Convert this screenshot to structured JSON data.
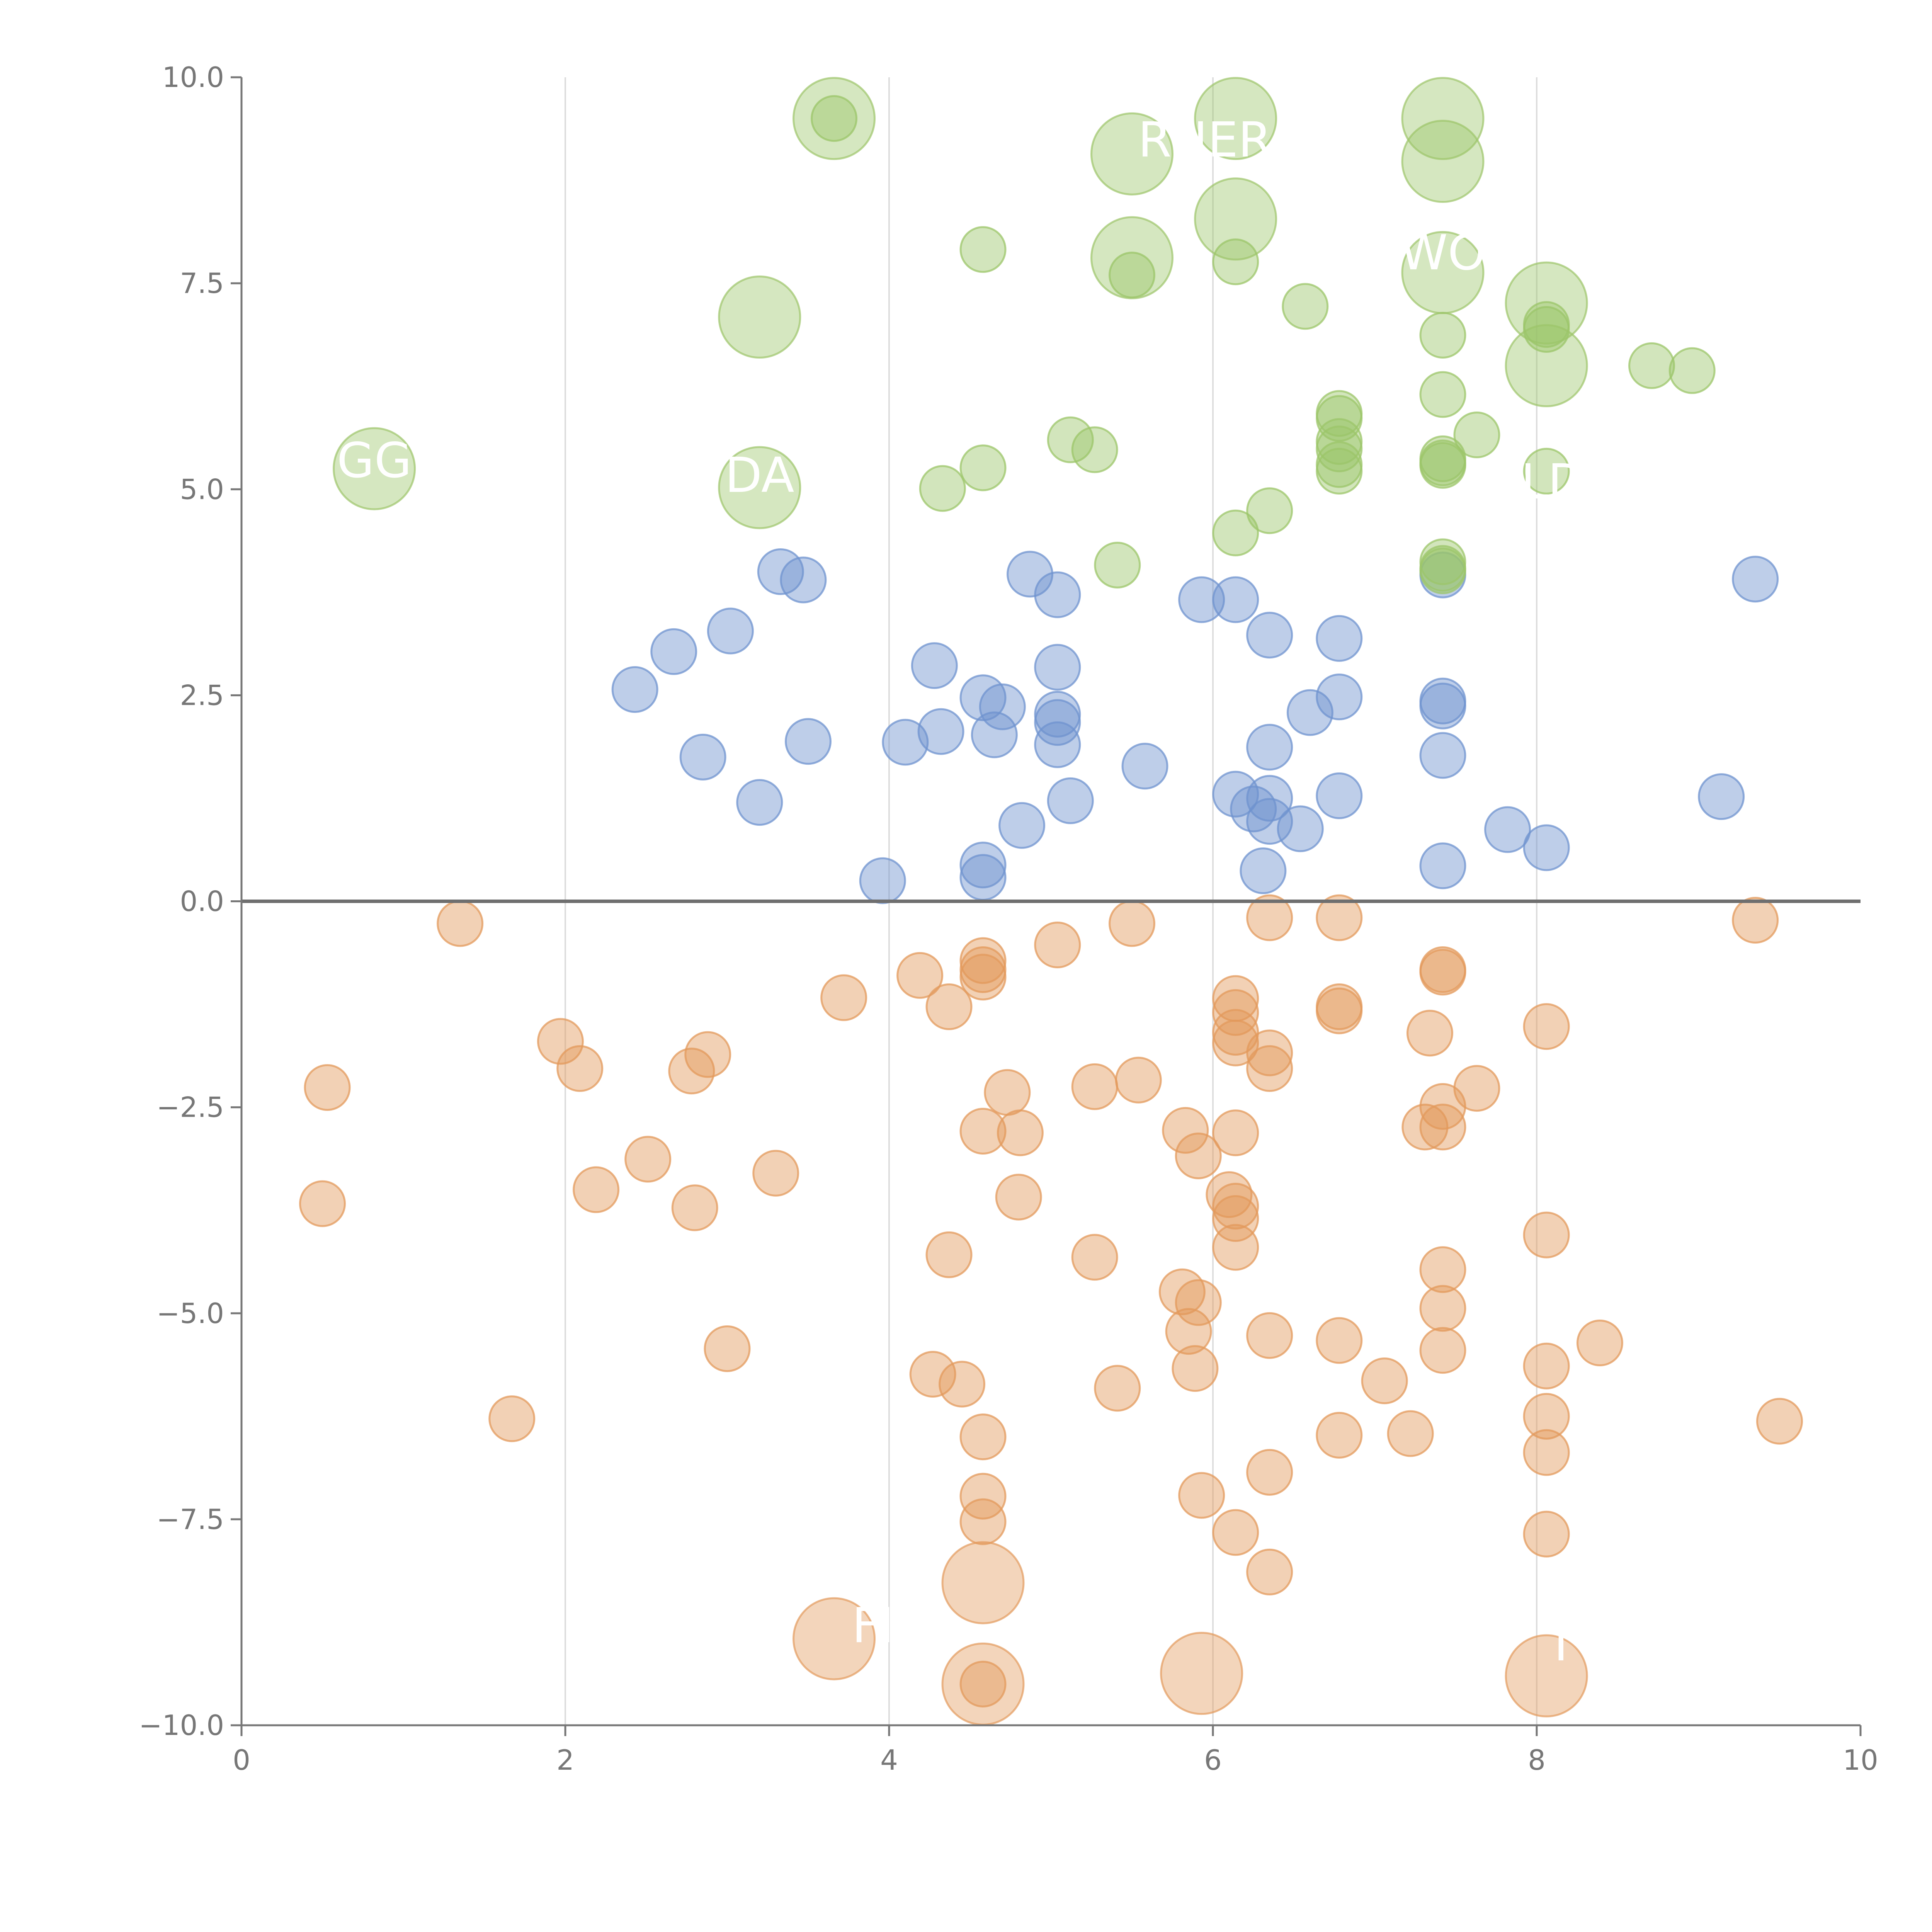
{
  "colors": {
    "positive": "#6f93cf",
    "negative": "#e39a5c",
    "top": "#9cc56a",
    "axis": "#777777",
    "grid": "#dddddd",
    "zero_line": "#6f6f6f",
    "label": "#ffffff"
  },
  "chart_data": {
    "type": "scatter",
    "title": "",
    "xlabel": "",
    "ylabel": "",
    "xlim": [
      0,
      10
    ],
    "ylim": [
      -10,
      10
    ],
    "xticks": [
      "0",
      "2",
      "4",
      "6",
      "8",
      "10"
    ],
    "xtick_values": [
      0,
      2,
      4,
      6,
      8,
      10
    ],
    "yticks": [
      "10.0",
      "7.5",
      "5.0",
      "2.5",
      "0.0",
      "−2.5",
      "−5.0",
      "−7.5",
      "−10.0"
    ],
    "ytick_values": [
      10,
      7.5,
      5,
      2.5,
      0,
      -2.5,
      -5,
      -7.5,
      -10
    ],
    "vgrid": [
      2,
      4,
      6,
      8
    ],
    "hline": 0,
    "series": [
      {
        "name": "positive",
        "color_key": "positive",
        "points": [
          [
            2.43,
            2.57
          ],
          [
            2.67,
            3.03
          ],
          [
            2.85,
            1.75
          ],
          [
            3.02,
            3.28
          ],
          [
            3.2,
            1.2
          ],
          [
            3.33,
            4.0
          ],
          [
            3.47,
            3.9
          ],
          [
            3.5,
            1.94
          ],
          [
            3.96,
            0.25
          ],
          [
            4.1,
            1.93
          ],
          [
            4.28,
            2.86
          ],
          [
            4.32,
            2.06
          ],
          [
            4.58,
            0.44
          ],
          [
            4.58,
            0.29
          ],
          [
            4.58,
            2.47
          ],
          [
            4.65,
            2.02
          ],
          [
            4.7,
            2.36
          ],
          [
            4.82,
            0.92
          ],
          [
            4.87,
            3.97
          ],
          [
            5.04,
            3.72
          ],
          [
            5.04,
            2.84
          ],
          [
            5.04,
            2.27
          ],
          [
            5.04,
            2.17
          ],
          [
            5.04,
            1.9
          ],
          [
            5.12,
            1.22
          ],
          [
            5.58,
            1.64
          ],
          [
            5.93,
            3.66
          ],
          [
            6.14,
            3.66
          ],
          [
            6.14,
            1.3
          ],
          [
            6.25,
            1.12
          ],
          [
            6.31,
            0.37
          ],
          [
            6.35,
            3.23
          ],
          [
            6.35,
            1.87
          ],
          [
            6.35,
            1.25
          ],
          [
            6.35,
            0.97
          ],
          [
            6.54,
            0.88
          ],
          [
            6.6,
            2.29
          ],
          [
            6.78,
            3.19
          ],
          [
            6.78,
            2.48
          ],
          [
            6.78,
            1.28
          ],
          [
            7.42,
            3.96
          ],
          [
            7.42,
            2.43
          ],
          [
            7.42,
            2.37
          ],
          [
            7.42,
            1.77
          ],
          [
            7.42,
            0.43
          ],
          [
            7.82,
            0.87
          ],
          [
            8.06,
            0.65
          ],
          [
            9.14,
            1.27
          ],
          [
            9.35,
            3.91
          ]
        ]
      },
      {
        "name": "negative",
        "color_key": "negative",
        "points": [
          [
            0.5,
            -3.67
          ],
          [
            0.53,
            -2.26
          ],
          [
            1.35,
            -0.27
          ],
          [
            1.67,
            -6.28
          ],
          [
            1.97,
            -1.7
          ],
          [
            2.09,
            -2.03
          ],
          [
            2.19,
            -3.5
          ],
          [
            2.51,
            -3.13
          ],
          [
            2.78,
            -2.06
          ],
          [
            2.8,
            -3.72
          ],
          [
            2.88,
            -1.86
          ],
          [
            3.0,
            -5.43
          ],
          [
            3.3,
            -3.3
          ],
          [
            3.72,
            -1.17
          ],
          [
            4.19,
            -0.9
          ],
          [
            4.27,
            -5.74
          ],
          [
            4.37,
            -1.28
          ],
          [
            4.37,
            -4.29
          ],
          [
            4.45,
            -5.86
          ],
          [
            4.58,
            -0.72
          ],
          [
            4.58,
            -0.83
          ],
          [
            4.58,
            -0.92
          ],
          [
            4.58,
            -2.79
          ],
          [
            4.58,
            -6.5
          ],
          [
            4.58,
            -7.22
          ],
          [
            4.58,
            -7.53
          ],
          [
            4.58,
            -9.5
          ],
          [
            4.73,
            -2.32
          ],
          [
            4.8,
            -3.59
          ],
          [
            4.81,
            -2.81
          ],
          [
            5.04,
            -0.53
          ],
          [
            5.27,
            -2.25
          ],
          [
            5.27,
            -4.32
          ],
          [
            5.41,
            -5.91
          ],
          [
            5.5,
            -0.27
          ],
          [
            5.54,
            -2.17
          ],
          [
            5.81,
            -4.74
          ],
          [
            5.83,
            -2.78
          ],
          [
            5.85,
            -5.22
          ],
          [
            5.89,
            -5.67
          ],
          [
            5.91,
            -4.87
          ],
          [
            5.91,
            -3.09
          ],
          [
            5.93,
            -7.21
          ],
          [
            6.1,
            -3.56
          ],
          [
            6.14,
            -3.7
          ],
          [
            6.14,
            -3.85
          ],
          [
            6.14,
            -4.2
          ],
          [
            6.14,
            -1.18
          ],
          [
            6.14,
            -1.35
          ],
          [
            6.14,
            -1.59
          ],
          [
            6.14,
            -1.72
          ],
          [
            6.14,
            -2.81
          ],
          [
            6.14,
            -7.66
          ],
          [
            6.35,
            -0.2
          ],
          [
            6.35,
            -1.84
          ],
          [
            6.35,
            -2.03
          ],
          [
            6.35,
            -5.27
          ],
          [
            6.35,
            -6.93
          ],
          [
            6.35,
            -8.14
          ],
          [
            6.78,
            -0.2
          ],
          [
            6.78,
            -1.28
          ],
          [
            6.78,
            -1.33
          ],
          [
            6.78,
            -5.33
          ],
          [
            6.78,
            -6.48
          ],
          [
            7.06,
            -5.82
          ],
          [
            7.22,
            -6.46
          ],
          [
            7.31,
            -2.74
          ],
          [
            7.34,
            -1.6
          ],
          [
            7.42,
            -0.83
          ],
          [
            7.42,
            -0.86
          ],
          [
            7.42,
            -2.49
          ],
          [
            7.42,
            -2.74
          ],
          [
            7.42,
            -4.47
          ],
          [
            7.42,
            -4.94
          ],
          [
            7.42,
            -5.45
          ],
          [
            7.63,
            -2.27
          ],
          [
            8.06,
            -1.52
          ],
          [
            8.06,
            -4.05
          ],
          [
            8.06,
            -5.64
          ],
          [
            8.06,
            -6.25
          ],
          [
            8.06,
            -6.69
          ],
          [
            8.06,
            -7.68
          ],
          [
            8.39,
            -5.36
          ],
          [
            9.35,
            -0.23
          ],
          [
            9.5,
            -6.31
          ]
        ]
      },
      {
        "name": "top",
        "color_key": "top",
        "points": [
          [
            3.66,
            9.5
          ],
          [
            4.33,
            5.01
          ],
          [
            4.58,
            7.91
          ],
          [
            4.58,
            5.26
          ],
          [
            5.12,
            5.6
          ],
          [
            5.27,
            5.48
          ],
          [
            5.41,
            4.08
          ],
          [
            5.5,
            7.6
          ],
          [
            6.14,
            7.76
          ],
          [
            6.14,
            4.47
          ],
          [
            6.35,
            4.74
          ],
          [
            6.57,
            7.22
          ],
          [
            6.78,
            5.92
          ],
          [
            6.78,
            5.86
          ],
          [
            6.78,
            5.58
          ],
          [
            6.78,
            5.49
          ],
          [
            6.78,
            5.3
          ],
          [
            6.78,
            5.22
          ],
          [
            7.42,
            6.87
          ],
          [
            7.42,
            6.15
          ],
          [
            7.42,
            5.37
          ],
          [
            7.42,
            5.32
          ],
          [
            7.42,
            5.29
          ],
          [
            7.42,
            4.12
          ],
          [
            7.42,
            4.04
          ],
          [
            7.42,
            4.01
          ],
          [
            7.63,
            5.66
          ],
          [
            8.06,
            7.0
          ],
          [
            8.06,
            6.94
          ],
          [
            8.06,
            5.22
          ],
          [
            8.71,
            6.5
          ],
          [
            8.96,
            6.44
          ]
        ]
      }
    ],
    "large_bubbles": [
      {
        "x": 0.82,
        "y": 5.25,
        "series": "top"
      },
      {
        "x": 3.2,
        "y": 7.09,
        "series": "top"
      },
      {
        "x": 3.2,
        "y": 5.02,
        "series": "top"
      },
      {
        "x": 3.66,
        "y": 9.5,
        "series": "top"
      },
      {
        "x": 5.5,
        "y": 9.07,
        "series": "top"
      },
      {
        "x": 5.5,
        "y": 7.81,
        "series": "top"
      },
      {
        "x": 6.14,
        "y": 9.5,
        "series": "top"
      },
      {
        "x": 6.14,
        "y": 8.28,
        "series": "top"
      },
      {
        "x": 7.42,
        "y": 9.5,
        "series": "top"
      },
      {
        "x": 7.42,
        "y": 8.98,
        "series": "top"
      },
      {
        "x": 7.42,
        "y": 7.63,
        "series": "top"
      },
      {
        "x": 8.06,
        "y": 7.26,
        "series": "top"
      },
      {
        "x": 8.06,
        "y": 6.5,
        "series": "top"
      },
      {
        "x": 3.66,
        "y": -8.95,
        "series": "negative"
      },
      {
        "x": 4.58,
        "y": -8.27,
        "series": "negative"
      },
      {
        "x": 4.58,
        "y": -9.5,
        "series": "negative"
      },
      {
        "x": 5.93,
        "y": -9.37,
        "series": "negative"
      },
      {
        "x": 8.06,
        "y": -9.4,
        "series": "negative"
      }
    ],
    "annotations": [
      {
        "text": "GG",
        "x": 0.82,
        "y": 5.36
      },
      {
        "text": "DA",
        "x": 3.2,
        "y": 5.18
      },
      {
        "text": "RNER",
        "x": 5.95,
        "y": 9.25
      },
      {
        "text": "WO",
        "x": 7.42,
        "y": 7.88
      },
      {
        "text": "LD",
        "x": 8.1,
        "y": 5.1
      },
      {
        "text": "FI",
        "x": 3.9,
        "y": -8.78
      },
      {
        "text": "I",
        "x": 8.15,
        "y": -9.0
      }
    ]
  }
}
